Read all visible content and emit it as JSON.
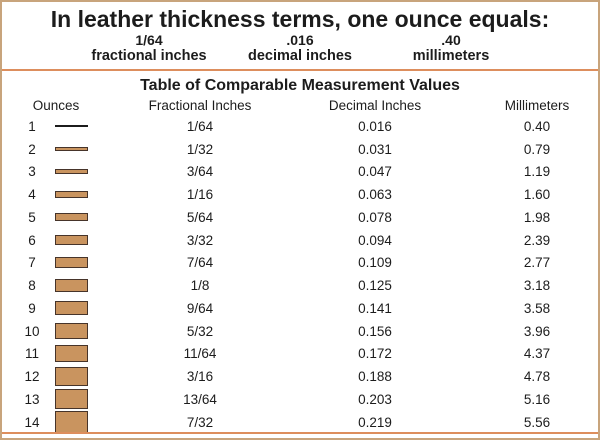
{
  "header": {
    "title": "In leather thickness terms, one ounce equals:",
    "equivalents": [
      {
        "value": "1/64",
        "label": "fractional inches"
      },
      {
        "value": ".016",
        "label": "decimal inches"
      },
      {
        "value": ".40",
        "label": "millimeters"
      }
    ]
  },
  "table": {
    "title": "Table of Comparable Measurement Values",
    "columns": [
      "Ounces",
      "Fractional Inches",
      "Decimal Inches",
      "Millimeters"
    ],
    "rows": [
      {
        "ounces": "1",
        "fractional": "1/64",
        "decimal": "0.016",
        "millimeters": "0.40"
      },
      {
        "ounces": "2",
        "fractional": "1/32",
        "decimal": "0.031",
        "millimeters": "0.79"
      },
      {
        "ounces": "3",
        "fractional": "3/64",
        "decimal": "0.047",
        "millimeters": "1.19"
      },
      {
        "ounces": "4",
        "fractional": "1/16",
        "decimal": "0.063",
        "millimeters": "1.60"
      },
      {
        "ounces": "5",
        "fractional": "5/64",
        "decimal": "0.078",
        "millimeters": "1.98"
      },
      {
        "ounces": "6",
        "fractional": "3/32",
        "decimal": "0.094",
        "millimeters": "2.39"
      },
      {
        "ounces": "7",
        "fractional": "7/64",
        "decimal": "0.109",
        "millimeters": "2.77"
      },
      {
        "ounces": "8",
        "fractional": "1/8",
        "decimal": "0.125",
        "millimeters": "3.18"
      },
      {
        "ounces": "9",
        "fractional": "9/64",
        "decimal": "0.141",
        "millimeters": "3.58"
      },
      {
        "ounces": "10",
        "fractional": "5/32",
        "decimal": "0.156",
        "millimeters": "3.96"
      },
      {
        "ounces": "11",
        "fractional": "11/64",
        "decimal": "0.172",
        "millimeters": "4.37"
      },
      {
        "ounces": "12",
        "fractional": "3/16",
        "decimal": "0.188",
        "millimeters": "4.78"
      },
      {
        "ounces": "13",
        "fractional": "13/64",
        "decimal": "0.203",
        "millimeters": "5.16"
      },
      {
        "ounces": "14",
        "fractional": "7/32",
        "decimal": "0.219",
        "millimeters": "5.56"
      }
    ]
  },
  "colors": {
    "frame": "#c8a47c",
    "rule": "#dd8e5d",
    "bar_fill": "#c9945f",
    "bar_border": "#46342a",
    "ink": "#1c1c1c"
  }
}
